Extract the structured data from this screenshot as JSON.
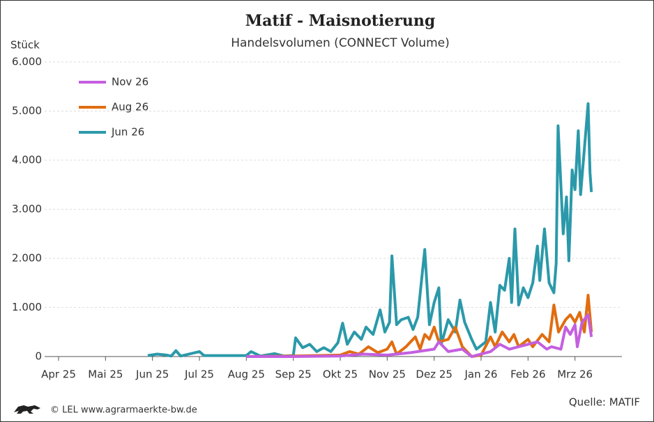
{
  "chart_data": {
    "type": "line",
    "title": "Matif - Maisnotierung",
    "subtitle": "Handelsvolumen (CONNECT Volume)",
    "y_label": "Stück",
    "source": "Quelle: MATIF",
    "credit": "© LEL www.agrarmaerkte-bw.de",
    "xlim": [
      0,
      12
    ],
    "xticks": [
      {
        "value": 0,
        "label": "Apr 25"
      },
      {
        "value": 1,
        "label": "Mai 25"
      },
      {
        "value": 2,
        "label": "Jun 25"
      },
      {
        "value": 3,
        "label": "Jul 25"
      },
      {
        "value": 4,
        "label": "Aug 25"
      },
      {
        "value": 5,
        "label": "Sep 25"
      },
      {
        "value": 6,
        "label": "Okt 25"
      },
      {
        "value": 7,
        "label": "Nov 25"
      },
      {
        "value": 8,
        "label": "Dez 25"
      },
      {
        "value": 9,
        "label": "Jan 26"
      },
      {
        "value": 10,
        "label": "Feb 26"
      },
      {
        "value": 11,
        "label": "Mrz 26"
      }
    ],
    "ylim": [
      0,
      6000
    ],
    "yticks": [
      0,
      {
        "value": 1000,
        "label": "1.000"
      },
      {
        "value": 2000,
        "label": "2.000"
      },
      {
        "value": 3000,
        "label": "3.000"
      },
      {
        "value": 4000,
        "label": "4.000"
      },
      {
        "value": 5000,
        "label": "5.000"
      },
      {
        "value": 6000,
        "label": "6.000"
      }
    ],
    "grid": true,
    "legend": "upper-left",
    "series": [
      {
        "name": "Nov 26",
        "color": "#c45fe0",
        "x": [
          4.0,
          5.0,
          6.0,
          6.5,
          7.0,
          7.5,
          8.0,
          8.1,
          8.3,
          8.6,
          8.8,
          9.2,
          9.4,
          9.6,
          9.8,
          10.0,
          10.2,
          10.4,
          10.5,
          10.7,
          10.8,
          10.9,
          11.0,
          11.05,
          11.15,
          11.28,
          11.35
        ],
        "values": [
          0,
          0,
          10,
          50,
          30,
          80,
          150,
          300,
          100,
          150,
          0,
          100,
          250,
          150,
          200,
          250,
          300,
          150,
          200,
          150,
          600,
          450,
          650,
          200,
          700,
          850,
          400
        ]
      },
      {
        "name": "Aug 26",
        "color": "#e06d10",
        "x": [
          4.0,
          5.0,
          6.0,
          6.2,
          6.4,
          6.6,
          6.8,
          7.0,
          7.1,
          7.2,
          7.4,
          7.6,
          7.7,
          7.8,
          7.9,
          8.0,
          8.1,
          8.3,
          8.45,
          8.6,
          8.8,
          9.0,
          9.2,
          9.3,
          9.45,
          9.6,
          9.7,
          9.8,
          10.0,
          10.1,
          10.3,
          10.45,
          10.55,
          10.65,
          10.8,
          10.9,
          11.0,
          11.1,
          11.2,
          11.28,
          11.35
        ],
        "values": [
          0,
          10,
          30,
          100,
          50,
          200,
          80,
          150,
          300,
          50,
          200,
          400,
          150,
          450,
          350,
          600,
          300,
          350,
          600,
          200,
          0,
          30,
          400,
          200,
          500,
          300,
          450,
          200,
          350,
          200,
          450,
          300,
          1050,
          500,
          750,
          850,
          700,
          900,
          500,
          1250,
          500
        ]
      },
      {
        "name": "Jun 26",
        "color": "#2b99aa",
        "x": [
          1.9,
          2.1,
          2.3,
          2.4,
          2.5,
          2.6,
          3.0,
          3.1,
          3.5,
          4.0,
          4.1,
          4.3,
          4.6,
          4.8,
          5.0,
          5.05,
          5.2,
          5.35,
          5.5,
          5.65,
          5.8,
          5.95,
          6.05,
          6.15,
          6.3,
          6.45,
          6.55,
          6.7,
          6.85,
          6.95,
          7.05,
          7.1,
          7.2,
          7.3,
          7.45,
          7.55,
          7.65,
          7.8,
          7.9,
          8.0,
          8.1,
          8.15,
          8.3,
          8.45,
          8.55,
          8.65,
          8.8,
          8.9,
          9.1,
          9.2,
          9.3,
          9.4,
          9.5,
          9.6,
          9.65,
          9.72,
          9.8,
          9.9,
          10.0,
          10.1,
          10.2,
          10.25,
          10.35,
          10.45,
          10.55,
          10.6,
          10.64,
          10.75,
          10.82,
          10.87,
          10.94,
          11.0,
          11.07,
          11.12,
          11.28,
          11.32,
          11.35
        ],
        "values": [
          20,
          50,
          30,
          10,
          120,
          10,
          100,
          20,
          20,
          20,
          100,
          10,
          60,
          10,
          20,
          380,
          180,
          250,
          100,
          180,
          100,
          280,
          680,
          250,
          500,
          350,
          600,
          450,
          950,
          500,
          700,
          2050,
          650,
          750,
          800,
          550,
          800,
          2180,
          650,
          1100,
          1400,
          250,
          750,
          500,
          1150,
          700,
          350,
          150,
          300,
          1100,
          500,
          1450,
          1350,
          2000,
          1100,
          2600,
          1050,
          1400,
          1200,
          1500,
          2250,
          1550,
          2600,
          1500,
          1300,
          1900,
          4700,
          2500,
          3250,
          1950,
          3800,
          3400,
          4600,
          3300,
          5150,
          3750,
          3350
        ]
      }
    ]
  }
}
